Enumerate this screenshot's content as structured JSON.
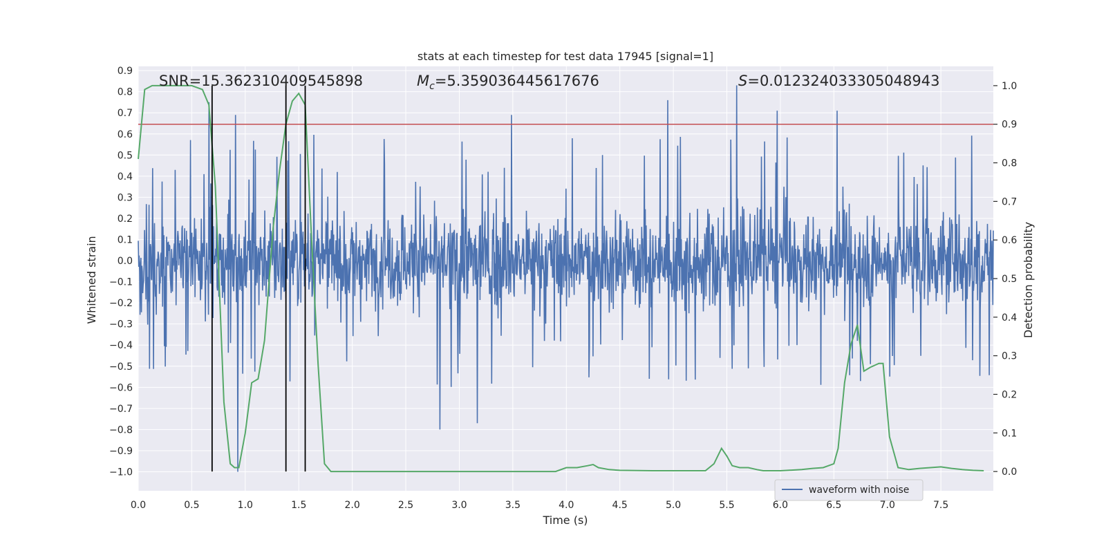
{
  "chart_data": {
    "type": "line",
    "title": "stats at each timestep for test data 17945 [signal=1]",
    "xlabel": "Time (s)",
    "ylabel_left": "Whitened strain",
    "ylabel_right": "Detection probability",
    "xlim": [
      0.0,
      7.99
    ],
    "ylim_left": [
      -1.09,
      0.92
    ],
    "ylim_right": [
      -0.05,
      1.05
    ],
    "x_ticks": [
      "0.0",
      "0.5",
      "1.0",
      "1.5",
      "2.0",
      "2.5",
      "3.0",
      "3.5",
      "4.0",
      "4.5",
      "5.0",
      "5.5",
      "6.0",
      "6.5",
      "7.0",
      "7.5"
    ],
    "left_ticks": [
      "0.9",
      "0.8",
      "0.7",
      "0.6",
      "0.5",
      "0.4",
      "0.3",
      "0.2",
      "0.1",
      "0.0",
      "−0.1",
      "−0.2",
      "−0.3",
      "−0.4",
      "−0.5",
      "−0.6",
      "−0.7",
      "−0.8",
      "−0.9",
      "−1.0"
    ],
    "right_ticks": [
      "1.0",
      "0.9",
      "0.8",
      "0.7",
      "0.6",
      "0.5",
      "0.4",
      "0.3",
      "0.2",
      "0.1",
      "0.0"
    ],
    "grid": true,
    "legend_position": "bottom-right",
    "annotations": {
      "snr": "SNR=15.362310409545898",
      "mc_symbol": "M",
      "mc_sub": "c",
      "mc_value": "=5.359036445617676",
      "s_symbol": "S",
      "s_value": "=0.012324033305048943"
    },
    "threshold": {
      "probability": 0.9,
      "color": "#c44e52"
    },
    "vertical_markers_s": [
      0.69,
      1.38,
      1.56
    ],
    "series": [
      {
        "name": "waveform with noise",
        "axis": "left",
        "color": "#4c72b0",
        "envelope": {
          "noise_sigma": 0.14,
          "typical_peak": 0.45,
          "max": 0.83,
          "min": -1.0
        },
        "notable_peaks": [
          {
            "x": 0.66,
            "y": 0.75
          },
          {
            "x": 0.91,
            "y": 0.69
          },
          {
            "x": 0.93,
            "y": -1.0
          },
          {
            "x": 2.82,
            "y": -0.8
          },
          {
            "x": 3.17,
            "y": -0.77
          },
          {
            "x": 3.49,
            "y": 0.69
          },
          {
            "x": 4.95,
            "y": 0.76
          },
          {
            "x": 5.59,
            "y": 0.83
          },
          {
            "x": 5.97,
            "y": 0.71
          },
          {
            "x": 6.53,
            "y": 0.71
          },
          {
            "x": 6.72,
            "y": -0.38
          },
          {
            "x": 6.84,
            "y": -0.49
          }
        ]
      },
      {
        "name": "",
        "axis": "right",
        "color": "#55a868",
        "x": [
          0.0,
          0.06,
          0.13,
          0.2,
          0.3,
          0.4,
          0.5,
          0.6,
          0.66,
          0.72,
          0.8,
          0.86,
          0.9,
          0.94,
          1.0,
          1.06,
          1.12,
          1.18,
          1.26,
          1.32,
          1.38,
          1.44,
          1.5,
          1.56,
          1.62,
          1.68,
          1.74,
          1.8,
          1.9,
          2.0,
          2.2,
          2.4,
          2.6,
          2.8,
          3.0,
          3.2,
          3.4,
          3.6,
          3.8,
          3.9,
          4.0,
          4.1,
          4.2,
          4.25,
          4.3,
          4.4,
          4.5,
          4.8,
          5.1,
          5.3,
          5.38,
          5.45,
          5.5,
          5.55,
          5.62,
          5.7,
          5.78,
          5.84,
          6.0,
          6.2,
          6.3,
          6.4,
          6.5,
          6.54,
          6.6,
          6.66,
          6.72,
          6.78,
          6.84,
          6.92,
          6.96,
          7.02,
          7.1,
          7.2,
          7.3,
          7.4,
          7.5,
          7.6,
          7.7,
          7.8,
          7.9
        ],
        "y": [
          0.81,
          0.99,
          1.0,
          1.0,
          1.0,
          1.0,
          1.0,
          0.99,
          0.95,
          0.74,
          0.18,
          0.02,
          0.01,
          0.01,
          0.1,
          0.23,
          0.24,
          0.34,
          0.63,
          0.78,
          0.9,
          0.96,
          0.98,
          0.95,
          0.6,
          0.28,
          0.02,
          0.0,
          0.0,
          0.0,
          0.0,
          0.0,
          0.0,
          0.0,
          0.0,
          0.0,
          0.0,
          0.0,
          0.0,
          0.0,
          0.01,
          0.01,
          0.015,
          0.018,
          0.01,
          0.005,
          0.003,
          0.002,
          0.002,
          0.002,
          0.02,
          0.06,
          0.04,
          0.015,
          0.01,
          0.01,
          0.005,
          0.002,
          0.002,
          0.005,
          0.008,
          0.01,
          0.02,
          0.06,
          0.23,
          0.33,
          0.38,
          0.26,
          0.27,
          0.28,
          0.28,
          0.09,
          0.01,
          0.005,
          0.008,
          0.01,
          0.012,
          0.008,
          0.005,
          0.003,
          0.002
        ]
      }
    ]
  }
}
